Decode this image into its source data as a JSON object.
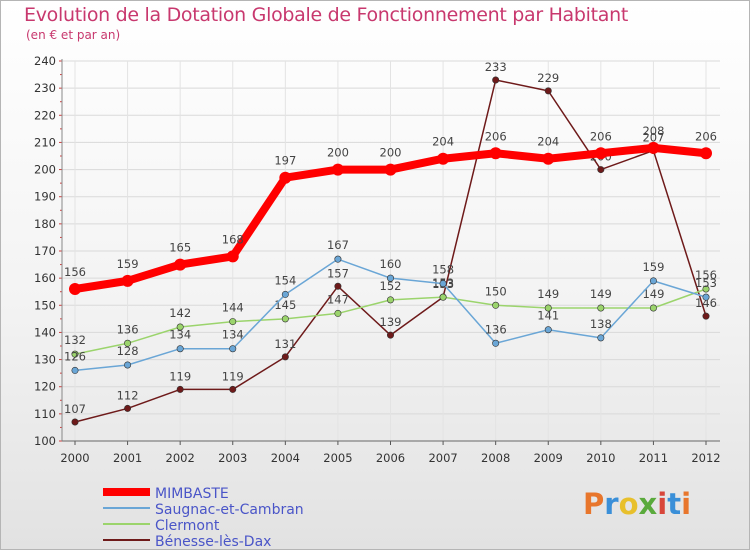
{
  "title": "Evolution de la Dotation Globale de Fonctionnement par Habitant",
  "subtitle": "(en € et par an)",
  "logo_text": "Proxiti",
  "logo_colors": [
    "#e8762c",
    "#3a8fd8",
    "#e8c02c",
    "#5aaa3c",
    "#d8463a",
    "#3a8fd8",
    "#e8762c"
  ],
  "chart_data": {
    "type": "line",
    "title": "Evolution de la Dotation Globale de Fonctionnement par Habitant",
    "subtitle": "(en € et par an)",
    "xlabel": "",
    "ylabel": "",
    "x": [
      "2000",
      "2001",
      "2002",
      "2003",
      "2004",
      "2005",
      "2006",
      "2007",
      "2008",
      "2009",
      "2010",
      "2011",
      "2012"
    ],
    "ylim": [
      100,
      240
    ],
    "yticks": [
      "100",
      "110",
      "120",
      "130",
      "140",
      "150",
      "160",
      "170",
      "180",
      "190",
      "200",
      "210",
      "220",
      "230",
      "240"
    ],
    "grid": true,
    "legend_position": "bottom-left",
    "series": [
      {
        "name": "Bénesse-lès-Dax",
        "color": "#6e1a1a",
        "values": [
          107,
          112,
          119,
          119,
          131,
          157,
          139,
          153,
          233,
          229,
          200,
          207,
          146
        ],
        "labels": [
          "107",
          "112",
          "119",
          "119",
          "131",
          "157",
          "139",
          "153",
          "233",
          "229",
          "200",
          "207",
          "146"
        ]
      },
      {
        "name": "Clermont",
        "color": "#9bd46c",
        "values": [
          132,
          136,
          142,
          144,
          145,
          147,
          152,
          153,
          150,
          149,
          149,
          149,
          156
        ],
        "labels": [
          "132",
          "136",
          "142",
          "144",
          "145",
          "147",
          "152",
          "153",
          "150",
          "149",
          "149",
          "149",
          "156"
        ]
      },
      {
        "name": "Saugnac-et-Cambran",
        "color": "#6aa6d6",
        "values": [
          126,
          128,
          134,
          134,
          154,
          167,
          160,
          158,
          136,
          141,
          138,
          159,
          153
        ],
        "labels": [
          "126",
          "128",
          "134",
          "134",
          "154",
          "167",
          "160",
          "158",
          "136",
          "141",
          "138",
          "159",
          "153"
        ]
      },
      {
        "name": "MIMBASTE",
        "color": "#ff0000",
        "values": [
          156,
          159,
          165,
          168,
          197,
          200,
          200,
          204,
          206,
          204,
          206,
          208,
          206
        ],
        "labels": [
          "156",
          "159",
          "165",
          "168",
          "197",
          "200",
          "200",
          "204",
          "206",
          "204",
          "206",
          "208",
          "206"
        ]
      }
    ],
    "legend": [
      "MIMBASTE",
      "Saugnac-et-Cambran",
      "Clermont",
      "Bénesse-lès-Dax"
    ]
  }
}
